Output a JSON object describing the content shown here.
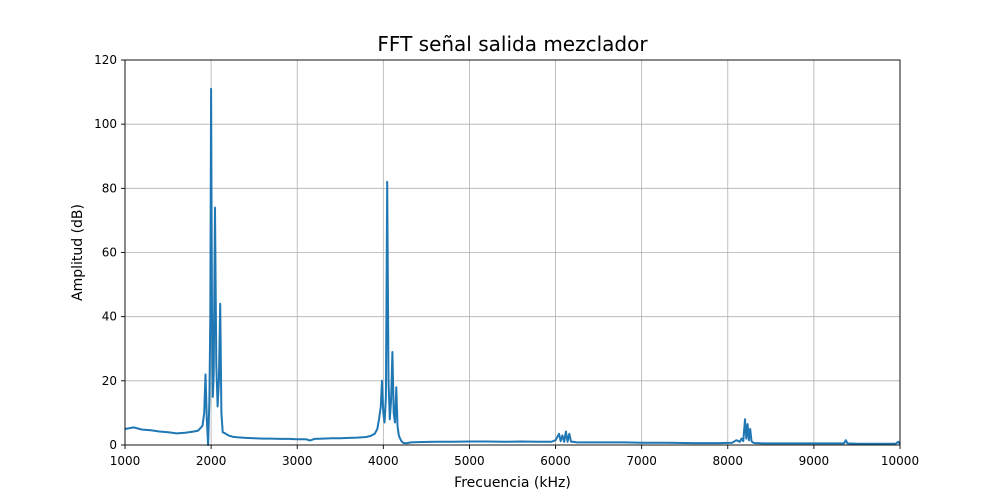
{
  "chart_data": {
    "type": "line",
    "title": "FFT señal salida mezclador",
    "xlabel": "Frecuencia (kHz)",
    "ylabel": "Amplitud (dB)",
    "xlim": [
      1000,
      10000
    ],
    "ylim": [
      0,
      120
    ],
    "xticks": [
      1000,
      2000,
      3000,
      4000,
      5000,
      6000,
      7000,
      8000,
      9000,
      10000
    ],
    "yticks": [
      0,
      20,
      40,
      60,
      80,
      100,
      120
    ],
    "grid": true,
    "series": [
      {
        "color": "#1f77b4",
        "x": [
          1000,
          1100,
          1200,
          1300,
          1400,
          1500,
          1600,
          1700,
          1800,
          1850,
          1900,
          1920,
          1935,
          1950,
          1965,
          1980,
          1990,
          2000,
          2010,
          2020,
          2030,
          2045,
          2060,
          2075,
          2090,
          2105,
          2120,
          2135,
          2150,
          2170,
          2200,
          2250,
          2300,
          2400,
          2500,
          2600,
          2700,
          2800,
          2900,
          3000,
          3100,
          3150,
          3200,
          3300,
          3400,
          3500,
          3600,
          3700,
          3800,
          3850,
          3900,
          3930,
          3950,
          3970,
          3985,
          4000,
          4015,
          4030,
          4045,
          4060,
          4075,
          4090,
          4105,
          4120,
          4135,
          4150,
          4165,
          4180,
          4195,
          4210,
          4230,
          4250,
          4280,
          4320,
          4400,
          4600,
          4800,
          5000,
          5200,
          5400,
          5600,
          5800,
          5950,
          6000,
          6040,
          6060,
          6080,
          6100,
          6120,
          6140,
          6160,
          6180,
          6200,
          6230,
          6250,
          6280,
          6300,
          6500,
          6800,
          7000,
          7300,
          7600,
          7900,
          8050,
          8100,
          8140,
          8160,
          8180,
          8200,
          8215,
          8230,
          8245,
          8260,
          8275,
          8290,
          8305,
          8320,
          8350,
          8400,
          8600,
          8800,
          9000,
          9200,
          9350,
          9370,
          9390,
          9500,
          9700,
          9900,
          9950,
          9980,
          10000
        ],
        "y": [
          5.0,
          5.5,
          4.8,
          4.6,
          4.2,
          4.0,
          3.6,
          3.8,
          4.2,
          4.5,
          6.0,
          10.0,
          22.0,
          8.0,
          0.0,
          14.0,
          40.0,
          111.0,
          40.0,
          15.0,
          22.0,
          74.0,
          25.0,
          12.0,
          20.0,
          44.0,
          10.0,
          4.0,
          3.8,
          3.5,
          3.0,
          2.6,
          2.4,
          2.2,
          2.1,
          2.0,
          2.0,
          1.9,
          1.9,
          1.8,
          1.8,
          1.4,
          1.9,
          2.0,
          2.1,
          2.1,
          2.2,
          2.3,
          2.5,
          2.8,
          3.5,
          5.0,
          8.0,
          12.0,
          20.0,
          10.0,
          7.0,
          15.0,
          82.0,
          20.0,
          8.0,
          14.0,
          29.0,
          10.0,
          7.0,
          18.0,
          6.0,
          3.0,
          2.0,
          1.2,
          0.7,
          0.6,
          0.6,
          0.8,
          0.9,
          1.0,
          1.0,
          1.1,
          1.1,
          1.0,
          1.1,
          1.0,
          1.0,
          1.5,
          3.5,
          1.2,
          3.0,
          1.0,
          4.2,
          1.0,
          3.5,
          1.0,
          1.0,
          0.9,
          0.8,
          0.8,
          0.8,
          0.8,
          0.8,
          0.7,
          0.7,
          0.6,
          0.6,
          0.7,
          1.5,
          1.0,
          2.0,
          1.2,
          8.0,
          2.0,
          6.5,
          1.5,
          5.0,
          1.2,
          0.8,
          0.7,
          0.6,
          0.6,
          0.5,
          0.5,
          0.5,
          0.5,
          0.5,
          0.5,
          1.5,
          0.5,
          0.4,
          0.4,
          0.4,
          0.4,
          1.0,
          0.4
        ]
      }
    ]
  }
}
